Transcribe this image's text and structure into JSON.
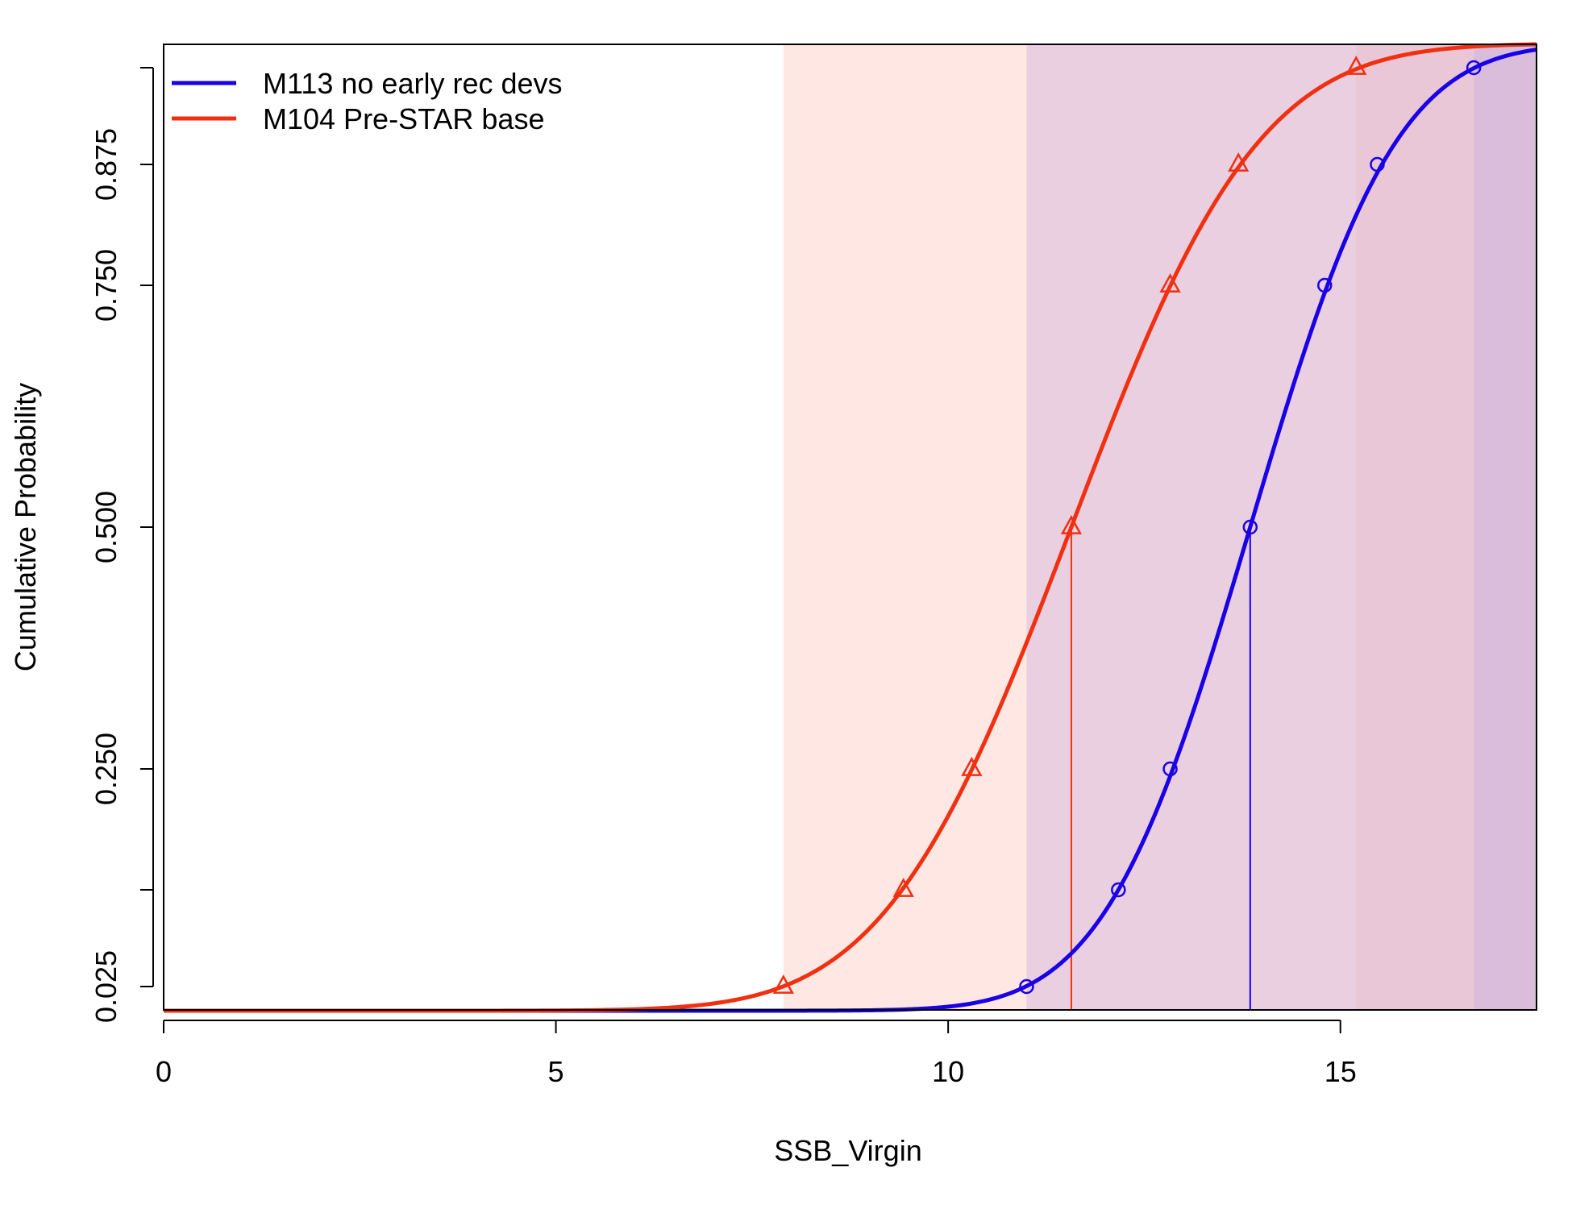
{
  "chart_data": {
    "type": "line",
    "xlabel": "SSB_Virgin",
    "ylabel": "Cumulative Probability",
    "xlim": [
      0,
      17.5
    ],
    "ylim": [
      0.0,
      1.0
    ],
    "x_ticks": [
      0,
      5,
      10,
      15
    ],
    "x_tick_labels": [
      "0",
      "5",
      "10",
      "15"
    ],
    "y_ticks": [
      0.025,
      0.125,
      0.25,
      0.5,
      0.75,
      0.875,
      0.975
    ],
    "y_tick_labels": [
      "0.025",
      "",
      "0.250",
      "0.500",
      "0.750",
      "0.875",
      ""
    ],
    "grid": false,
    "legend_position": "top-left",
    "series": [
      {
        "name": "M113 no early rec devs",
        "color": "#1a00e6",
        "fill": "#d3b8dc",
        "marker": "circle",
        "median": 13.85,
        "quantiles": [
          {
            "x": 11.0,
            "p": 0.025
          },
          {
            "x": 12.17,
            "p": 0.125
          },
          {
            "x": 12.83,
            "p": 0.25
          },
          {
            "x": 13.85,
            "p": 0.5
          },
          {
            "x": 14.8,
            "p": 0.75
          },
          {
            "x": 15.47,
            "p": 0.875
          },
          {
            "x": 16.7,
            "p": 0.975
          }
        ]
      },
      {
        "name": "M104 Pre-STAR base",
        "color": "#f03010",
        "fill": "#ffd0c8",
        "marker": "triangle",
        "median": 11.57,
        "quantiles": [
          {
            "x": 7.9,
            "p": 0.025
          },
          {
            "x": 9.43,
            "p": 0.125
          },
          {
            "x": 10.3,
            "p": 0.25
          },
          {
            "x": 11.57,
            "p": 0.5
          },
          {
            "x": 12.83,
            "p": 0.75
          },
          {
            "x": 13.7,
            "p": 0.875
          },
          {
            "x": 15.2,
            "p": 0.975
          }
        ]
      }
    ]
  }
}
